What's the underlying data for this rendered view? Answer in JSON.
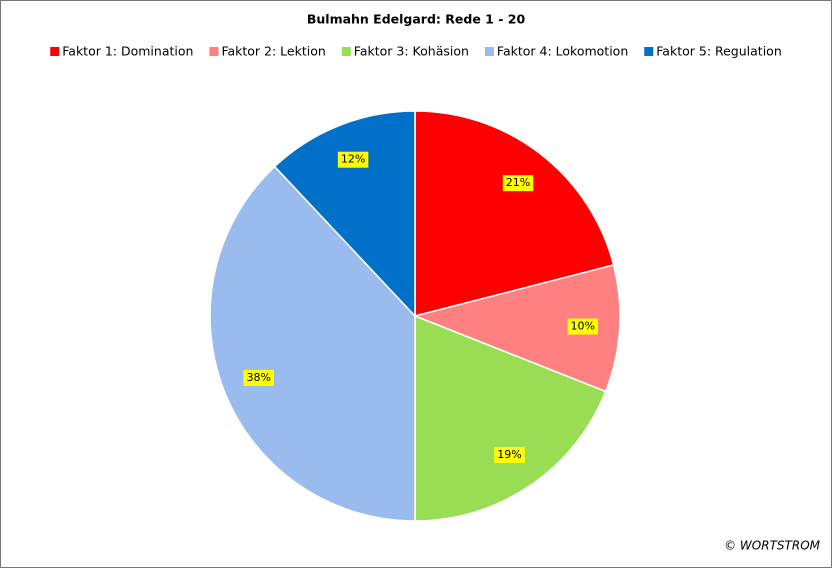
{
  "chart_data": {
    "type": "pie",
    "title": "Bulmahn Edelgard: Rede 1 - 20",
    "categories": [
      "Faktor 1: Domination",
      "Faktor 2: Lektion",
      "Faktor 3: Kohäsion",
      "Faktor 4: Lokomotion",
      "Faktor 5: Regulation"
    ],
    "values": [
      21,
      10,
      19,
      38,
      12
    ],
    "value_labels": [
      "21%",
      "10%",
      "19%",
      "38%",
      "12%"
    ],
    "colors": [
      "#ff0000",
      "#ff8080",
      "#99dd55",
      "#99bbee",
      "#0070c8"
    ],
    "legend": "top",
    "credit": "© WORTSTROM"
  }
}
